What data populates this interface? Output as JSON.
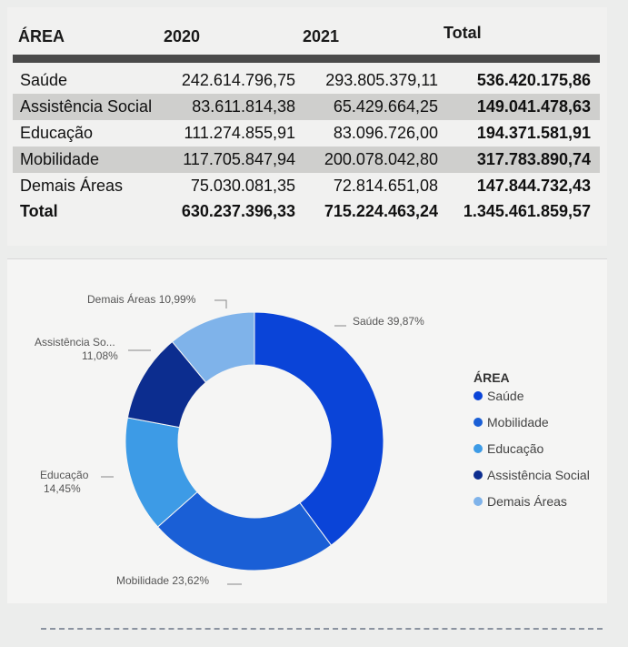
{
  "table": {
    "headers": [
      "ÁREA",
      "2020",
      "2021",
      "Total"
    ],
    "rows": [
      {
        "area": "Saúde",
        "v2020": "242.614.796,75",
        "v2021": "293.805.379,11",
        "total": "536.420.175,86"
      },
      {
        "area": "Assistência Social",
        "v2020": "83.611.814,38",
        "v2021": "65.429.664,25",
        "total": "149.041.478,63"
      },
      {
        "area": "Educação",
        "v2020": "111.274.855,91",
        "v2021": "83.096.726,00",
        "total": "194.371.581,91"
      },
      {
        "area": "Mobilidade",
        "v2020": "117.705.847,94",
        "v2021": "200.078.042,80",
        "total": "317.783.890,74"
      },
      {
        "area": "Demais Áreas",
        "v2020": "75.030.081,35",
        "v2021": "72.814.651,08",
        "total": "147.844.732,43"
      }
    ],
    "total_row": {
      "area": "Total",
      "v2020": "630.237.396,33",
      "v2021": "715.224.463,24",
      "total": "1.345.461.859,57"
    }
  },
  "chart_data": {
    "type": "pie",
    "donut": true,
    "legend_title": "ÁREA",
    "legend_position": "right",
    "slices": [
      {
        "name": "Saúde",
        "value": 39.87,
        "label": "Saúde 39,87%",
        "color": "#0a44d8"
      },
      {
        "name": "Mobilidade",
        "value": 23.62,
        "label": "Mobilidade 23,62%",
        "color": "#1a5fd6"
      },
      {
        "name": "Educação",
        "value": 14.45,
        "label_lines": [
          "Educação",
          "14,45%"
        ],
        "color": "#3d9be6"
      },
      {
        "name": "Assistência Social",
        "value": 11.08,
        "label_lines": [
          "Assistência So...",
          "11,08%"
        ],
        "color": "#0c2d8f"
      },
      {
        "name": "Demais Áreas",
        "value": 10.99,
        "label": "Demais Áreas 10,99%",
        "color": "#7fb3ea"
      }
    ]
  }
}
